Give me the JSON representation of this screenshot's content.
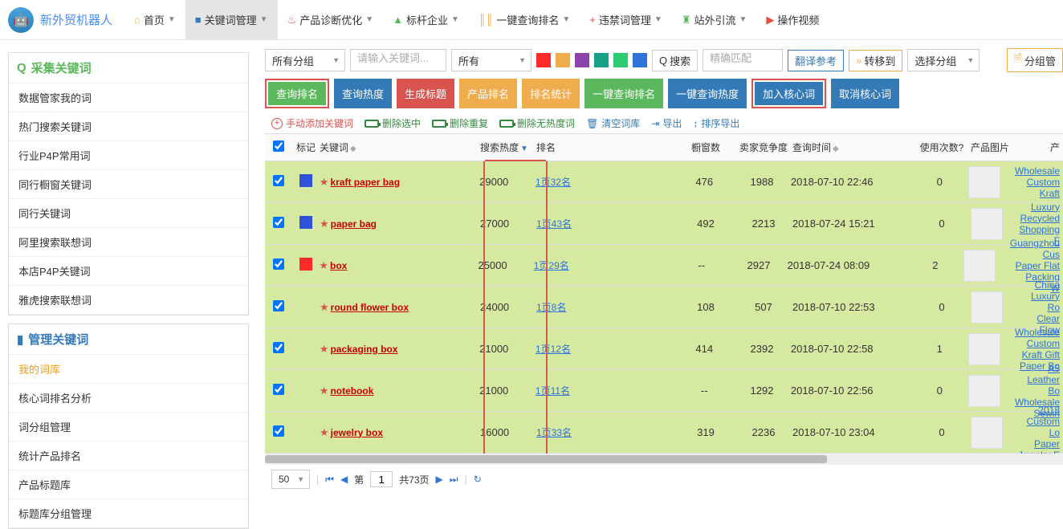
{
  "brand": {
    "name": "新外贸机器人"
  },
  "nav": [
    {
      "label": "首页",
      "icon": "⌂",
      "color": "#f0ad4e",
      "active": false
    },
    {
      "label": "关键词管理",
      "icon": "■",
      "color": "#337ab7",
      "active": true
    },
    {
      "label": "产品诊断优化",
      "icon": "♨",
      "color": "#d9534f",
      "active": false
    },
    {
      "label": "标杆企业",
      "icon": "▲",
      "color": "#5cb85c",
      "active": false
    },
    {
      "label": "一键查询排名",
      "icon": "║║",
      "color": "#f0ad4e",
      "active": false
    },
    {
      "label": "违禁词管理",
      "icon": "+",
      "color": "#d9534f",
      "active": false
    },
    {
      "label": "站外引流",
      "icon": "♜",
      "color": "#5cb85c",
      "active": false
    },
    {
      "label": "操作视频",
      "icon": "▶",
      "color": "#e74c3c",
      "active": false,
      "nocaret": true
    }
  ],
  "sidebar": {
    "collect": {
      "title": "采集关键词",
      "title_color": "#5cb85c",
      "icon": "Q",
      "items": [
        "数据管家我的词",
        "热门搜索关键词",
        "行业P4P常用词",
        "同行橱窗关键词",
        "同行关键词",
        "阿里搜索联想词",
        "本店P4P关键词",
        "雅虎搜索联想词"
      ]
    },
    "manage": {
      "title": "管理关键词",
      "title_color": "#337ab7",
      "icon": "▮",
      "items": [
        "我的词库",
        "核心词排名分析",
        "词分组管理",
        "统计产品排名",
        "产品标题库",
        "标题库分组管理"
      ],
      "active_index": 0
    }
  },
  "filter": {
    "group_sel": "所有分组",
    "kw_placeholder": "请输入关键词...",
    "all_sel": "所有",
    "swatches": [
      "#ff2a2a",
      "#f0ad4e",
      "#8e44ad",
      "#16a085",
      "#2ecc71",
      "#2f72d9"
    ],
    "search_btn": "搜索",
    "exact_ph": "精确匹配",
    "trans_btn": "翻译参考",
    "move_btn": "转移到",
    "mgroup_sel": "选择分组",
    "split_btn": "分组管"
  },
  "btn_row": {
    "b1": "查询排名",
    "b2": "查询热度",
    "b3": "生成标题",
    "b4": "产品排名",
    "b5": "排名统计",
    "b6": "一键查询排名",
    "b7": "一键查询热度",
    "b8": "加入核心词",
    "b9": "取消核心词"
  },
  "link_row": {
    "l1": "手动添加关键词",
    "l2": "删除选中",
    "l3": "删除重复",
    "l4": "删除无热度词",
    "l5": "清空词库",
    "l6": "导出",
    "l7": "排序导出"
  },
  "columns": {
    "mark": "标记",
    "kw": "关键词",
    "heat": "搜索热度",
    "rank": "排名",
    "win": "橱窗数",
    "comp": "卖家竞争度",
    "time": "查询时间",
    "use": "使用次数?",
    "img": "产品图片",
    "prod": "产"
  },
  "rows": [
    {
      "mark": "#2f52d9",
      "kw": "kraft paper bag",
      "heat": "29000",
      "rank": "1页32名",
      "win": "476",
      "comp": "1988",
      "time": "2018-07-10 22:46",
      "use": "0",
      "prod": "Wholesale Custom\nKraft"
    },
    {
      "mark": "#2f52d9",
      "kw": "paper bag",
      "heat": "27000",
      "rank": "1页43名",
      "win": "492",
      "comp": "2213",
      "time": "2018-07-24 15:21",
      "use": "0",
      "prod": "Luxury Recycled\nShopping F"
    },
    {
      "mark": "#ff2a2a",
      "kw": "box",
      "heat": "25000",
      "rank": "1页29名",
      "win": "--",
      "comp": "2927",
      "time": "2018-07-24 08:09",
      "use": "2",
      "prod": "Guangzhou Cus\nPaper Flat Packing\nW"
    },
    {
      "mark": "",
      "kw": "round flower box",
      "heat": "24000",
      "rank": "1页8名",
      "win": "108",
      "comp": "507",
      "time": "2018-07-10 22:53",
      "use": "0",
      "prod": "China Luxury Ro\nClear Flow"
    },
    {
      "mark": "",
      "kw": "packaging box",
      "heat": "21000",
      "rank": "1页12名",
      "win": "414",
      "comp": "2392",
      "time": "2018-07-10 22:58",
      "use": "1",
      "prod": "Wholesale Custom\nKraft Gift Paper Bo"
    },
    {
      "mark": "",
      "kw": "notebook",
      "heat": "21000",
      "rank": "1页11名",
      "win": "--",
      "comp": "1292",
      "time": "2018-07-10 22:56",
      "use": "0",
      "prod": "A5 Leather Bo\nWholesale Sewin"
    },
    {
      "mark": "",
      "kw": "jewelry box",
      "heat": "16000",
      "rank": "1页33名",
      "win": "319",
      "comp": "2236",
      "time": "2018-07-10 23:04",
      "use": "0",
      "prod": "2018 Custom Lo\nPaper Jewelry E"
    }
  ],
  "pager": {
    "size": "50",
    "page": "1",
    "total": "共73页"
  }
}
